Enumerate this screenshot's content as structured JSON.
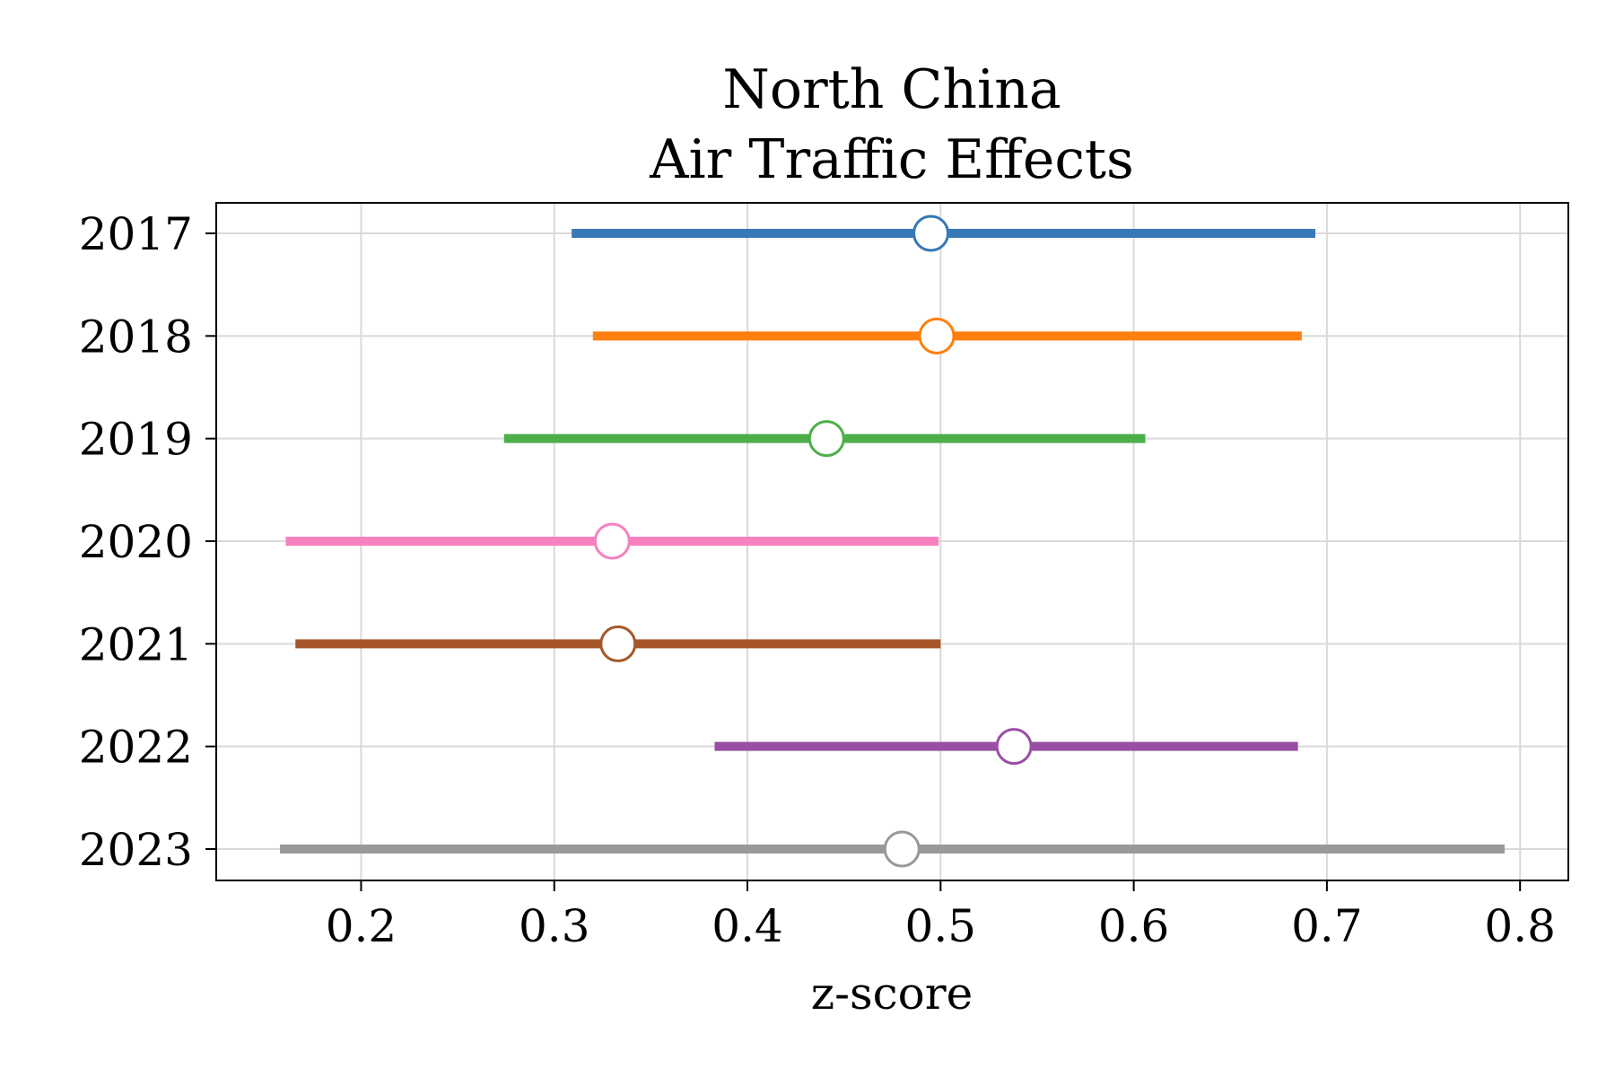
{
  "chart_data": {
    "type": "scatter",
    "subtype": "forest-plot",
    "title_lines": [
      "North China",
      "Air Traffic Effects"
    ],
    "xlabel": "z-score",
    "ylabel": "",
    "xlim": [
      0.125,
      0.825
    ],
    "x_ticks": [
      0.2,
      0.3,
      0.4,
      0.5,
      0.6,
      0.7,
      0.8
    ],
    "x_tick_labels": [
      "0.2",
      "0.3",
      "0.4",
      "0.5",
      "0.6",
      "0.7",
      "0.8"
    ],
    "grid": true,
    "categories": [
      "2017",
      "2018",
      "2019",
      "2020",
      "2021",
      "2022",
      "2023"
    ],
    "series": [
      {
        "category": "2017",
        "estimate": 0.495,
        "ci_low": 0.309,
        "ci_high": 0.694,
        "color": "#3778b6"
      },
      {
        "category": "2018",
        "estimate": 0.498,
        "ci_low": 0.32,
        "ci_high": 0.687,
        "color": "#ff7f0e"
      },
      {
        "category": "2019",
        "estimate": 0.441,
        "ci_low": 0.274,
        "ci_high": 0.606,
        "color": "#4daf4a"
      },
      {
        "category": "2020",
        "estimate": 0.33,
        "ci_low": 0.161,
        "ci_high": 0.499,
        "color": "#f781bf"
      },
      {
        "category": "2021",
        "estimate": 0.333,
        "ci_low": 0.166,
        "ci_high": 0.5,
        "color": "#a65628"
      },
      {
        "category": "2022",
        "estimate": 0.538,
        "ci_low": 0.383,
        "ci_high": 0.685,
        "color": "#984ea3"
      },
      {
        "category": "2023",
        "estimate": 0.48,
        "ci_low": 0.158,
        "ci_high": 0.792,
        "color": "#999999"
      }
    ]
  }
}
